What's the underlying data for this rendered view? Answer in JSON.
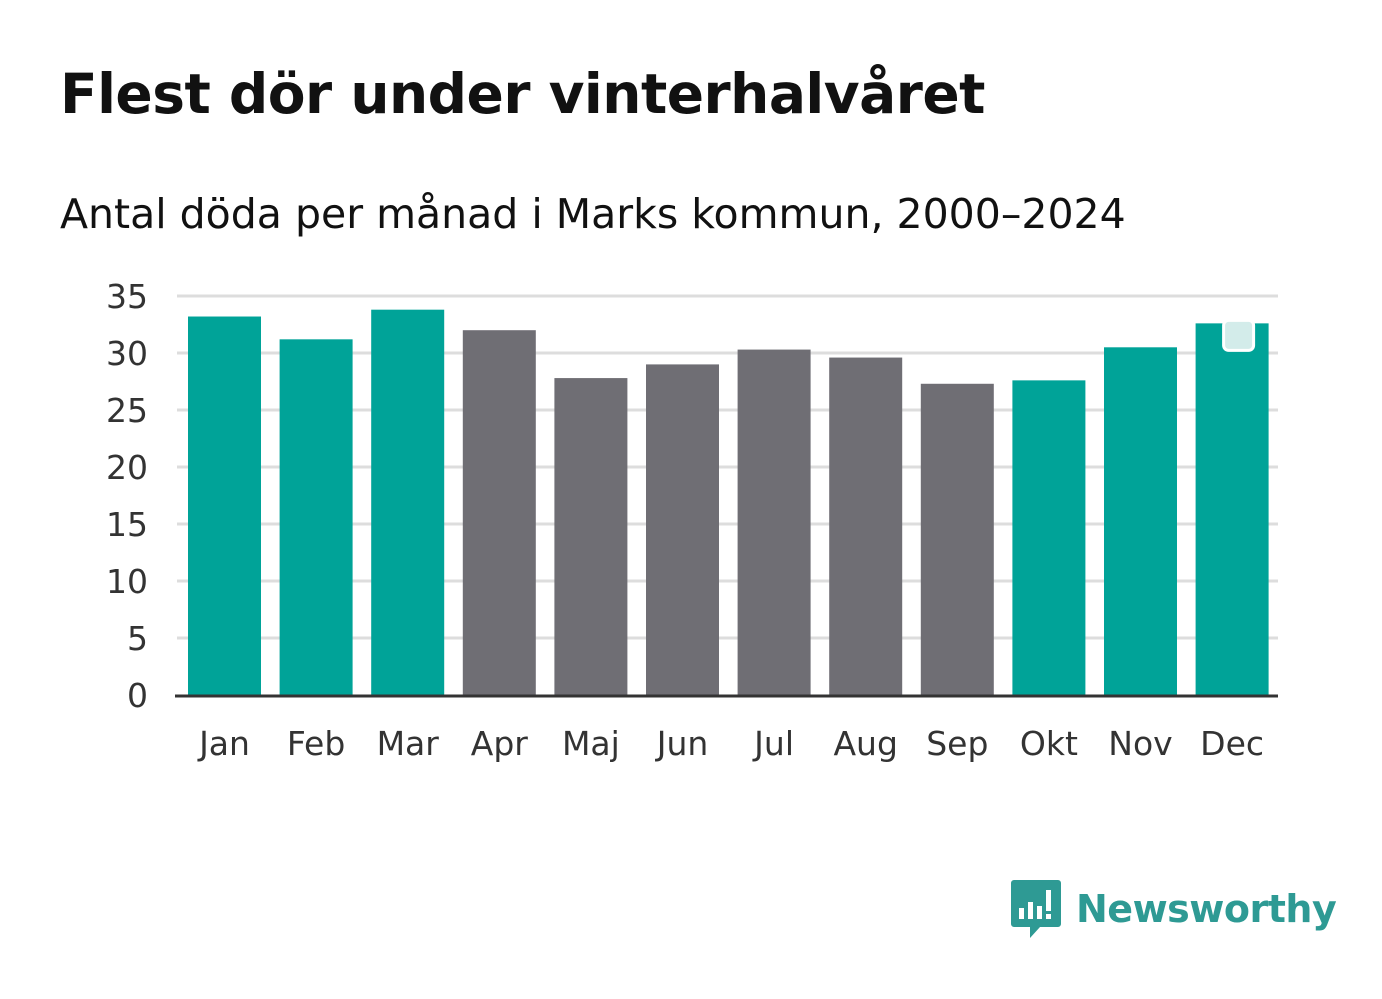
{
  "header": {
    "title": "Flest dör under vinterhalvåret",
    "subtitle": "Antal döda per månad i Marks kommun, 2000–2024"
  },
  "brand": {
    "name": "Newsworthy",
    "color": "#2e9a94"
  },
  "colors": {
    "winter": "#00a398",
    "summer": "#6f6e74",
    "grid": "#dddddd",
    "axis": "#333333"
  },
  "chart_data": {
    "type": "bar",
    "categories": [
      "Jan",
      "Feb",
      "Mar",
      "Apr",
      "Maj",
      "Jun",
      "Jul",
      "Aug",
      "Sep",
      "Okt",
      "Nov",
      "Dec"
    ],
    "values": [
      33.2,
      31.2,
      33.8,
      32.0,
      27.8,
      29.0,
      30.3,
      29.6,
      27.3,
      27.6,
      30.5,
      32.6
    ],
    "groups": [
      "winter",
      "winter",
      "winter",
      "summer",
      "summer",
      "summer",
      "summer",
      "summer",
      "summer",
      "winter",
      "winter",
      "winter"
    ],
    "yticks": [
      0,
      5,
      10,
      15,
      20,
      25,
      30,
      35
    ],
    "ylim": [
      0,
      35
    ],
    "title": "Flest dör under vinterhalvåret",
    "xlabel": "",
    "ylabel": "",
    "grid": true
  }
}
